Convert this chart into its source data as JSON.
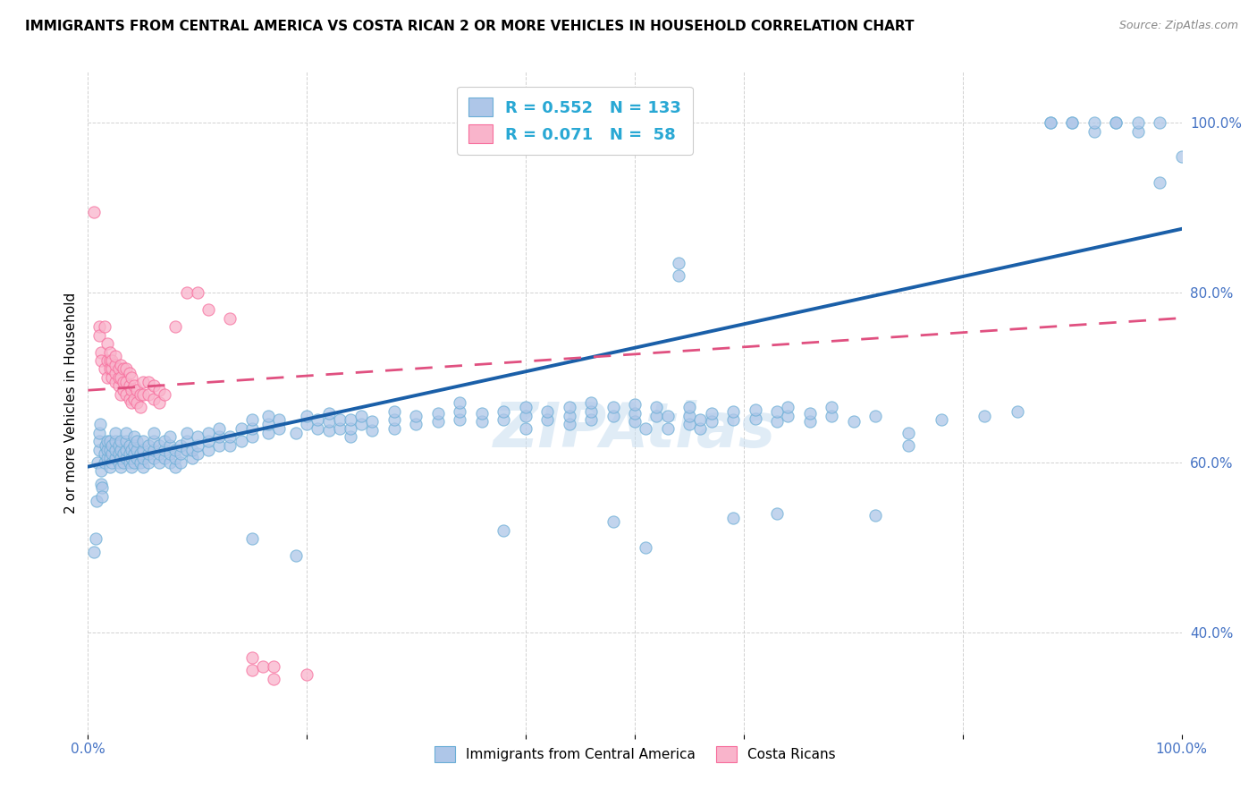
{
  "title": "IMMIGRANTS FROM CENTRAL AMERICA VS COSTA RICAN 2 OR MORE VEHICLES IN HOUSEHOLD CORRELATION CHART",
  "source": "Source: ZipAtlas.com",
  "ylabel": "2 or more Vehicles in Household",
  "xlim": [
    0.0,
    1.0
  ],
  "ylim": [
    0.28,
    1.06
  ],
  "y_tick_labels": [
    "40.0%",
    "60.0%",
    "80.0%",
    "100.0%"
  ],
  "y_tick_positions": [
    0.4,
    0.6,
    0.8,
    1.0
  ],
  "blue_color": "#6baed6",
  "pink_color": "#f76d9c",
  "blue_fill": "#aec6e8",
  "pink_fill": "#f9b4cb",
  "trendline_blue": "#1a5fa8",
  "trendline_pink": "#e05080",
  "watermark": "ZIPAtlas",
  "legend_text_color": "#29a8d4",
  "blue_scatter": [
    [
      0.005,
      0.495
    ],
    [
      0.007,
      0.51
    ],
    [
      0.008,
      0.555
    ],
    [
      0.009,
      0.6
    ],
    [
      0.01,
      0.615
    ],
    [
      0.01,
      0.625
    ],
    [
      0.01,
      0.635
    ],
    [
      0.011,
      0.645
    ],
    [
      0.012,
      0.575
    ],
    [
      0.012,
      0.59
    ],
    [
      0.013,
      0.57
    ],
    [
      0.013,
      0.56
    ],
    [
      0.015,
      0.6
    ],
    [
      0.015,
      0.61
    ],
    [
      0.016,
      0.62
    ],
    [
      0.018,
      0.605
    ],
    [
      0.018,
      0.615
    ],
    [
      0.018,
      0.625
    ],
    [
      0.02,
      0.595
    ],
    [
      0.02,
      0.605
    ],
    [
      0.02,
      0.615
    ],
    [
      0.02,
      0.625
    ],
    [
      0.022,
      0.6
    ],
    [
      0.022,
      0.61
    ],
    [
      0.022,
      0.62
    ],
    [
      0.025,
      0.605
    ],
    [
      0.025,
      0.615
    ],
    [
      0.025,
      0.625
    ],
    [
      0.025,
      0.635
    ],
    [
      0.028,
      0.6
    ],
    [
      0.028,
      0.61
    ],
    [
      0.028,
      0.62
    ],
    [
      0.03,
      0.595
    ],
    [
      0.03,
      0.605
    ],
    [
      0.03,
      0.615
    ],
    [
      0.03,
      0.625
    ],
    [
      0.032,
      0.6
    ],
    [
      0.032,
      0.61
    ],
    [
      0.035,
      0.605
    ],
    [
      0.035,
      0.615
    ],
    [
      0.035,
      0.625
    ],
    [
      0.035,
      0.635
    ],
    [
      0.038,
      0.6
    ],
    [
      0.038,
      0.61
    ],
    [
      0.038,
      0.62
    ],
    [
      0.04,
      0.595
    ],
    [
      0.04,
      0.605
    ],
    [
      0.04,
      0.615
    ],
    [
      0.042,
      0.6
    ],
    [
      0.042,
      0.61
    ],
    [
      0.042,
      0.62
    ],
    [
      0.042,
      0.63
    ],
    [
      0.045,
      0.605
    ],
    [
      0.045,
      0.615
    ],
    [
      0.045,
      0.625
    ],
    [
      0.048,
      0.6
    ],
    [
      0.048,
      0.61
    ],
    [
      0.05,
      0.595
    ],
    [
      0.05,
      0.605
    ],
    [
      0.05,
      0.615
    ],
    [
      0.05,
      0.625
    ],
    [
      0.055,
      0.6
    ],
    [
      0.055,
      0.61
    ],
    [
      0.055,
      0.62
    ],
    [
      0.06,
      0.605
    ],
    [
      0.06,
      0.615
    ],
    [
      0.06,
      0.625
    ],
    [
      0.06,
      0.635
    ],
    [
      0.065,
      0.6
    ],
    [
      0.065,
      0.61
    ],
    [
      0.065,
      0.62
    ],
    [
      0.07,
      0.605
    ],
    [
      0.07,
      0.615
    ],
    [
      0.07,
      0.625
    ],
    [
      0.075,
      0.6
    ],
    [
      0.075,
      0.61
    ],
    [
      0.075,
      0.62
    ],
    [
      0.075,
      0.63
    ],
    [
      0.08,
      0.595
    ],
    [
      0.08,
      0.605
    ],
    [
      0.08,
      0.615
    ],
    [
      0.085,
      0.6
    ],
    [
      0.085,
      0.61
    ],
    [
      0.085,
      0.62
    ],
    [
      0.09,
      0.615
    ],
    [
      0.09,
      0.625
    ],
    [
      0.09,
      0.635
    ],
    [
      0.095,
      0.605
    ],
    [
      0.095,
      0.615
    ],
    [
      0.1,
      0.61
    ],
    [
      0.1,
      0.62
    ],
    [
      0.1,
      0.63
    ],
    [
      0.11,
      0.615
    ],
    [
      0.11,
      0.625
    ],
    [
      0.11,
      0.635
    ],
    [
      0.12,
      0.62
    ],
    [
      0.12,
      0.63
    ],
    [
      0.12,
      0.64
    ],
    [
      0.13,
      0.62
    ],
    [
      0.13,
      0.63
    ],
    [
      0.14,
      0.625
    ],
    [
      0.14,
      0.64
    ],
    [
      0.15,
      0.51
    ],
    [
      0.15,
      0.63
    ],
    [
      0.15,
      0.64
    ],
    [
      0.15,
      0.65
    ],
    [
      0.165,
      0.635
    ],
    [
      0.165,
      0.645
    ],
    [
      0.165,
      0.655
    ],
    [
      0.175,
      0.64
    ],
    [
      0.175,
      0.65
    ],
    [
      0.19,
      0.49
    ],
    [
      0.19,
      0.635
    ],
    [
      0.2,
      0.645
    ],
    [
      0.2,
      0.655
    ],
    [
      0.21,
      0.64
    ],
    [
      0.21,
      0.65
    ],
    [
      0.22,
      0.638
    ],
    [
      0.22,
      0.648
    ],
    [
      0.22,
      0.658
    ],
    [
      0.23,
      0.64
    ],
    [
      0.23,
      0.65
    ],
    [
      0.24,
      0.63
    ],
    [
      0.24,
      0.64
    ],
    [
      0.24,
      0.65
    ],
    [
      0.25,
      0.645
    ],
    [
      0.25,
      0.655
    ],
    [
      0.26,
      0.638
    ],
    [
      0.26,
      0.648
    ],
    [
      0.28,
      0.64
    ],
    [
      0.28,
      0.65
    ],
    [
      0.28,
      0.66
    ],
    [
      0.3,
      0.645
    ],
    [
      0.3,
      0.655
    ],
    [
      0.32,
      0.648
    ],
    [
      0.32,
      0.658
    ],
    [
      0.34,
      0.65
    ],
    [
      0.34,
      0.66
    ],
    [
      0.34,
      0.67
    ],
    [
      0.36,
      0.648
    ],
    [
      0.36,
      0.658
    ],
    [
      0.38,
      0.52
    ],
    [
      0.38,
      0.65
    ],
    [
      0.38,
      0.66
    ],
    [
      0.4,
      0.64
    ],
    [
      0.4,
      0.655
    ],
    [
      0.4,
      0.665
    ],
    [
      0.42,
      0.65
    ],
    [
      0.42,
      0.66
    ],
    [
      0.44,
      0.645
    ],
    [
      0.44,
      0.655
    ],
    [
      0.44,
      0.665
    ],
    [
      0.46,
      0.65
    ],
    [
      0.46,
      0.66
    ],
    [
      0.46,
      0.67
    ],
    [
      0.48,
      0.53
    ],
    [
      0.48,
      0.655
    ],
    [
      0.48,
      0.665
    ],
    [
      0.5,
      0.648
    ],
    [
      0.5,
      0.658
    ],
    [
      0.5,
      0.668
    ],
    [
      0.51,
      0.5
    ],
    [
      0.51,
      0.64
    ],
    [
      0.52,
      0.655
    ],
    [
      0.52,
      0.665
    ],
    [
      0.53,
      0.64
    ],
    [
      0.53,
      0.655
    ],
    [
      0.54,
      0.82
    ],
    [
      0.54,
      0.835
    ],
    [
      0.55,
      0.645
    ],
    [
      0.55,
      0.655
    ],
    [
      0.55,
      0.665
    ],
    [
      0.56,
      0.64
    ],
    [
      0.56,
      0.65
    ],
    [
      0.57,
      0.648
    ],
    [
      0.57,
      0.658
    ],
    [
      0.59,
      0.535
    ],
    [
      0.59,
      0.65
    ],
    [
      0.59,
      0.66
    ],
    [
      0.61,
      0.652
    ],
    [
      0.61,
      0.662
    ],
    [
      0.63,
      0.54
    ],
    [
      0.63,
      0.648
    ],
    [
      0.63,
      0.66
    ],
    [
      0.64,
      0.655
    ],
    [
      0.64,
      0.665
    ],
    [
      0.66,
      0.648
    ],
    [
      0.66,
      0.658
    ],
    [
      0.68,
      0.655
    ],
    [
      0.68,
      0.665
    ],
    [
      0.7,
      0.648
    ],
    [
      0.72,
      0.538
    ],
    [
      0.72,
      0.655
    ],
    [
      0.75,
      0.62
    ],
    [
      0.75,
      0.635
    ],
    [
      0.78,
      0.65
    ],
    [
      0.82,
      0.655
    ],
    [
      0.85,
      0.66
    ],
    [
      0.88,
      1.0
    ],
    [
      0.88,
      1.0
    ],
    [
      0.9,
      1.0
    ],
    [
      0.9,
      1.0
    ],
    [
      0.92,
      0.99
    ],
    [
      0.92,
      1.0
    ],
    [
      0.94,
      1.0
    ],
    [
      0.94,
      1.0
    ],
    [
      0.96,
      0.99
    ],
    [
      0.96,
      1.0
    ],
    [
      0.98,
      0.93
    ],
    [
      0.98,
      1.0
    ],
    [
      1.0,
      0.96
    ]
  ],
  "pink_scatter": [
    [
      0.005,
      0.895
    ],
    [
      0.01,
      0.76
    ],
    [
      0.01,
      0.75
    ],
    [
      0.012,
      0.73
    ],
    [
      0.012,
      0.72
    ],
    [
      0.015,
      0.76
    ],
    [
      0.015,
      0.71
    ],
    [
      0.018,
      0.7
    ],
    [
      0.018,
      0.72
    ],
    [
      0.018,
      0.74
    ],
    [
      0.02,
      0.72
    ],
    [
      0.02,
      0.73
    ],
    [
      0.02,
      0.71
    ],
    [
      0.022,
      0.7
    ],
    [
      0.022,
      0.71
    ],
    [
      0.022,
      0.72
    ],
    [
      0.025,
      0.695
    ],
    [
      0.025,
      0.705
    ],
    [
      0.025,
      0.715
    ],
    [
      0.025,
      0.725
    ],
    [
      0.028,
      0.69
    ],
    [
      0.028,
      0.7
    ],
    [
      0.028,
      0.71
    ],
    [
      0.03,
      0.68
    ],
    [
      0.03,
      0.7
    ],
    [
      0.03,
      0.715
    ],
    [
      0.032,
      0.685
    ],
    [
      0.032,
      0.695
    ],
    [
      0.032,
      0.71
    ],
    [
      0.035,
      0.68
    ],
    [
      0.035,
      0.695
    ],
    [
      0.035,
      0.71
    ],
    [
      0.038,
      0.675
    ],
    [
      0.038,
      0.69
    ],
    [
      0.038,
      0.705
    ],
    [
      0.04,
      0.67
    ],
    [
      0.04,
      0.685
    ],
    [
      0.04,
      0.7
    ],
    [
      0.042,
      0.675
    ],
    [
      0.042,
      0.69
    ],
    [
      0.045,
      0.67
    ],
    [
      0.045,
      0.685
    ],
    [
      0.048,
      0.665
    ],
    [
      0.048,
      0.68
    ],
    [
      0.05,
      0.68
    ],
    [
      0.05,
      0.695
    ],
    [
      0.055,
      0.68
    ],
    [
      0.055,
      0.695
    ],
    [
      0.06,
      0.675
    ],
    [
      0.06,
      0.69
    ],
    [
      0.065,
      0.67
    ],
    [
      0.065,
      0.685
    ],
    [
      0.07,
      0.68
    ],
    [
      0.08,
      0.76
    ],
    [
      0.09,
      0.8
    ],
    [
      0.1,
      0.8
    ],
    [
      0.11,
      0.78
    ],
    [
      0.13,
      0.77
    ],
    [
      0.15,
      0.355
    ],
    [
      0.15,
      0.37
    ],
    [
      0.16,
      0.36
    ],
    [
      0.17,
      0.345
    ],
    [
      0.17,
      0.36
    ],
    [
      0.2,
      0.35
    ]
  ]
}
